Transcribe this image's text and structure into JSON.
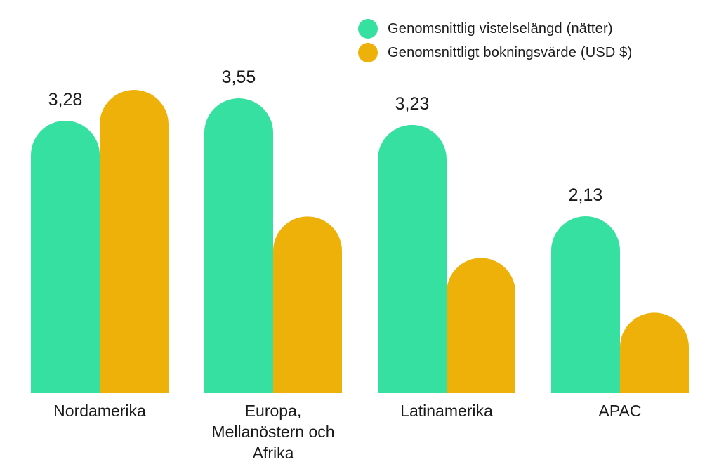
{
  "colors": {
    "series_1": "#35e0a1",
    "series_2": "#eeb10a"
  },
  "legend": [
    {
      "label": "Genomsnittlig vistelselängd (nätter)"
    },
    {
      "label": "Genomsnittligt bokningsvärde (USD $)"
    }
  ],
  "chart_data": {
    "type": "bar",
    "categories": [
      "Nordamerika",
      "Europa, Mellanöstern och Afrika",
      "Latinamerika",
      "APAC"
    ],
    "category_label_lines": [
      [
        "Nordamerika"
      ],
      [
        "Europa,",
        "Mellanöstern och",
        "Afrika"
      ],
      [
        "Latinamerika"
      ],
      [
        "APAC"
      ]
    ],
    "series": [
      {
        "name": "Genomsnittlig vistelselängd (nätter)",
        "values": [
          3.28,
          3.55,
          3.23,
          2.13
        ],
        "data_labels": [
          "3,28",
          "3,55",
          "3,23",
          "2,13"
        ]
      },
      {
        "name": "Genomsnittligt bokningsvärde (USD $)",
        "values": [
          460,
          268,
          205,
          122
        ],
        "data_labels": []
      }
    ],
    "title": "",
    "xlabel": "",
    "ylabel": "",
    "bar_shape": "rounded-top",
    "grid": false,
    "legend_position": "top-right"
  }
}
